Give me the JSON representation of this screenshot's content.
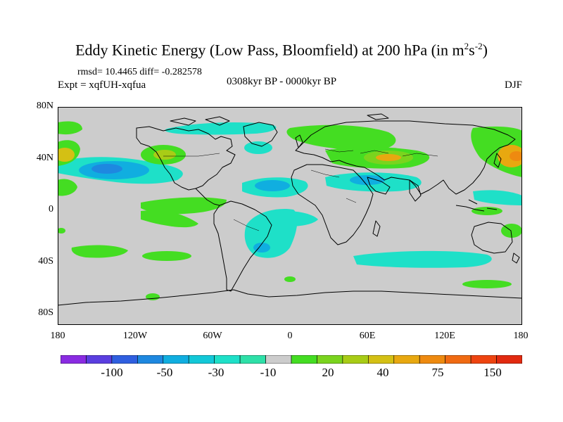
{
  "title": {
    "main": "Eddy Kinetic Energy (Low Pass, Bloomfield) at 200 hPa (in m",
    "sup1": "2",
    "mid": "s",
    "sup2": "-2",
    "end": ")"
  },
  "stats": "rmsd= 10.4465 diff= -0.282578",
  "experiment": "Expt = xqfUH-xqfua",
  "period": "0308kyr BP - 0000kyr BP",
  "season": "DJF",
  "axes": {
    "lat_labels": [
      "80N",
      "40N",
      "0",
      "40S",
      "80S"
    ],
    "lon_labels": [
      "180",
      "120W",
      "60W",
      "0",
      "60E",
      "120E",
      "180"
    ]
  },
  "colorbar": {
    "labels": [
      "-100",
      "-50",
      "-30",
      "-10",
      "20",
      "40",
      "75",
      "150"
    ],
    "colors": [
      "#8a2be2",
      "#5a3ee0",
      "#2f5fe0",
      "#1e88e0",
      "#10aee0",
      "#12c8d8",
      "#1ee0c8",
      "#2ee0a8",
      "#cccccc",
      "#44dd22",
      "#7ad41e",
      "#a8cc16",
      "#d4c014",
      "#e8a810",
      "#ee8a10",
      "#f06a12",
      "#ee4410",
      "#e22a10"
    ]
  },
  "colors": {
    "background": "#cccccc",
    "neg_light": "#1ee0c8",
    "neg_mid": "#10aee0",
    "neg_strong": "#1e88e0",
    "pos_light": "#44dd22",
    "pos_mid": "#7ad41e",
    "pos_strong": "#e8a810"
  }
}
